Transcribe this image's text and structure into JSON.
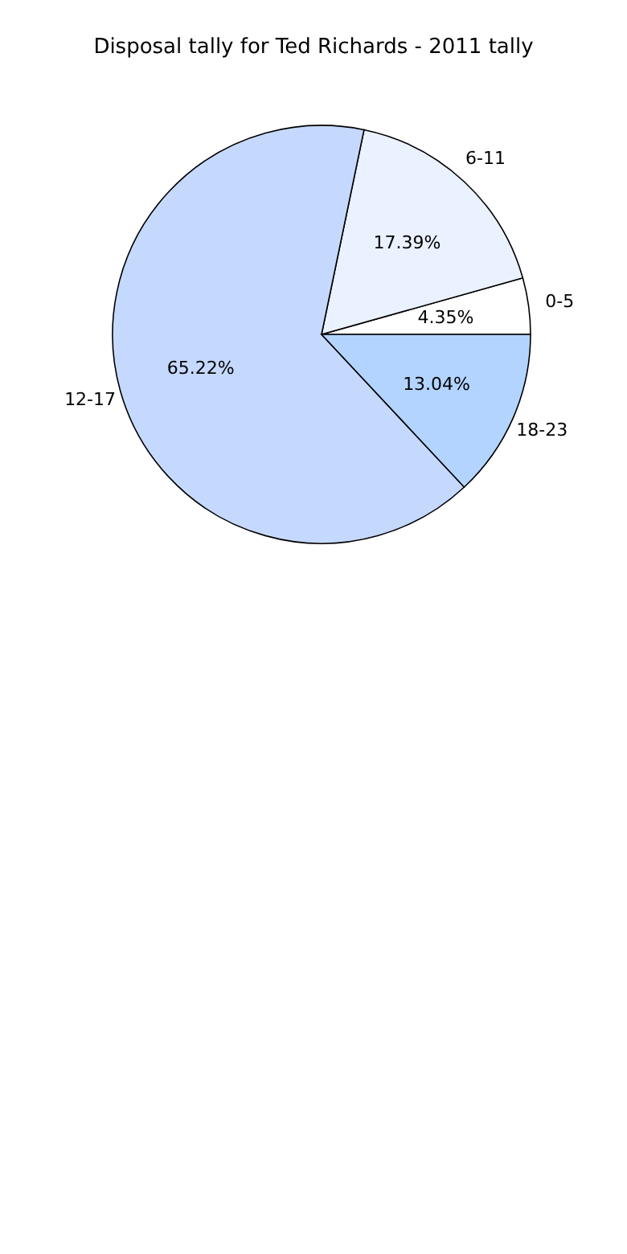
{
  "chart_data": {
    "type": "pie",
    "title": "Disposal tally for Ted Richards - 2011 tally",
    "categories": [
      "0-5",
      "6-11",
      "12-17",
      "18-23"
    ],
    "values": [
      4.35,
      17.39,
      65.22,
      13.04
    ],
    "colors": [
      "#ffffff",
      "#eaf1ff",
      "#c5d9ff",
      "#b3d4ff"
    ],
    "value_labels": [
      "4.35%",
      "17.39%",
      "65.22%",
      "13.04%"
    ]
  }
}
